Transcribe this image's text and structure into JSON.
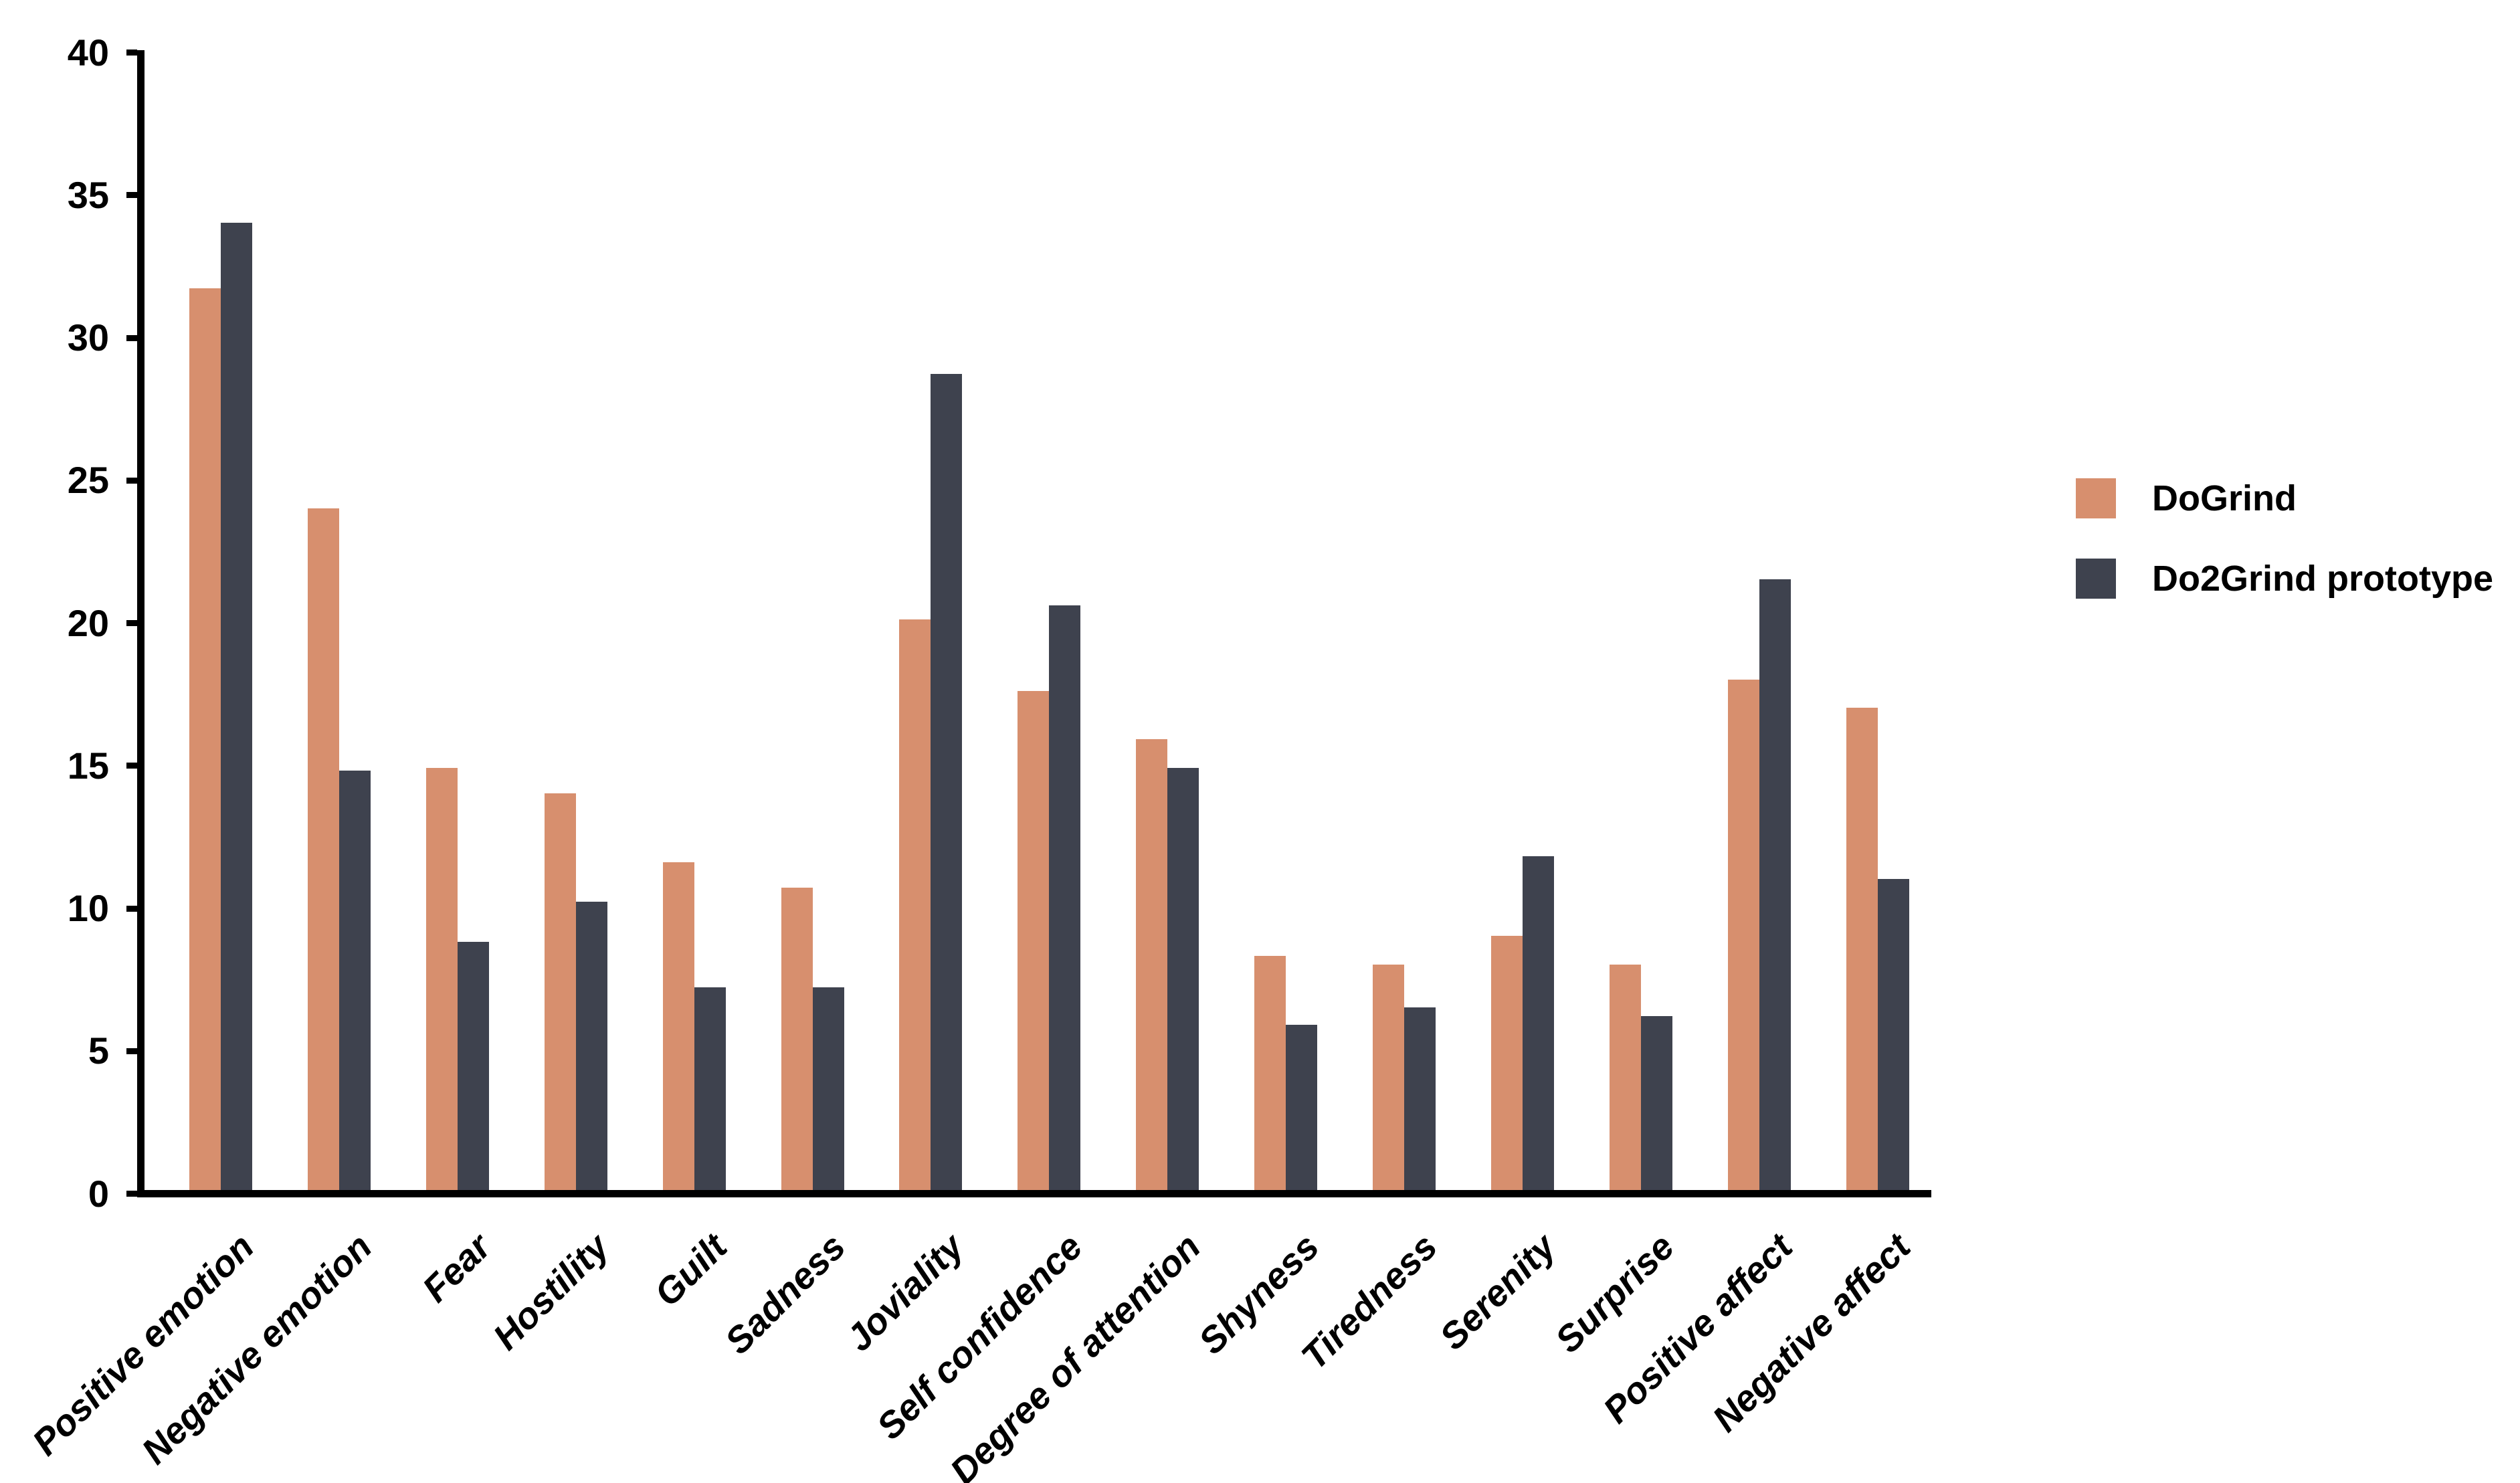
{
  "figure": {
    "background": "#ffffff",
    "axis_color": "#000000",
    "text_color": "#000000"
  },
  "chart_data": {
    "type": "bar",
    "title": "",
    "xlabel": "",
    "ylabel": "",
    "categories": [
      "Positive emotion",
      "Negative emotion",
      "Fear",
      "Hostility",
      "Guilt",
      "Sadness",
      "Joviality",
      "Self confidence",
      "Degree of attention",
      "Shyness",
      "Tiredness",
      "Serenity",
      "Surprise",
      "Positive affect",
      "Negative affect"
    ],
    "series": [
      {
        "name": "DoGrind",
        "color": "#D78F6E",
        "values": [
          31.6,
          23.9,
          14.8,
          13.9,
          11.5,
          10.6,
          20.0,
          17.5,
          15.8,
          8.2,
          7.9,
          8.9,
          7.9,
          17.9,
          16.9
        ]
      },
      {
        "name": "Do2Grind prototype",
        "color": "#3E424E",
        "values": [
          33.9,
          14.7,
          8.7,
          10.1,
          7.1,
          7.1,
          28.6,
          20.5,
          14.8,
          5.8,
          6.4,
          11.7,
          6.1,
          21.4,
          10.9
        ]
      }
    ],
    "ylim": [
      0,
      40
    ],
    "yticks": [
      0,
      5,
      10,
      15,
      20,
      25,
      30,
      35,
      40
    ],
    "grid": false,
    "legend_position": "right"
  }
}
